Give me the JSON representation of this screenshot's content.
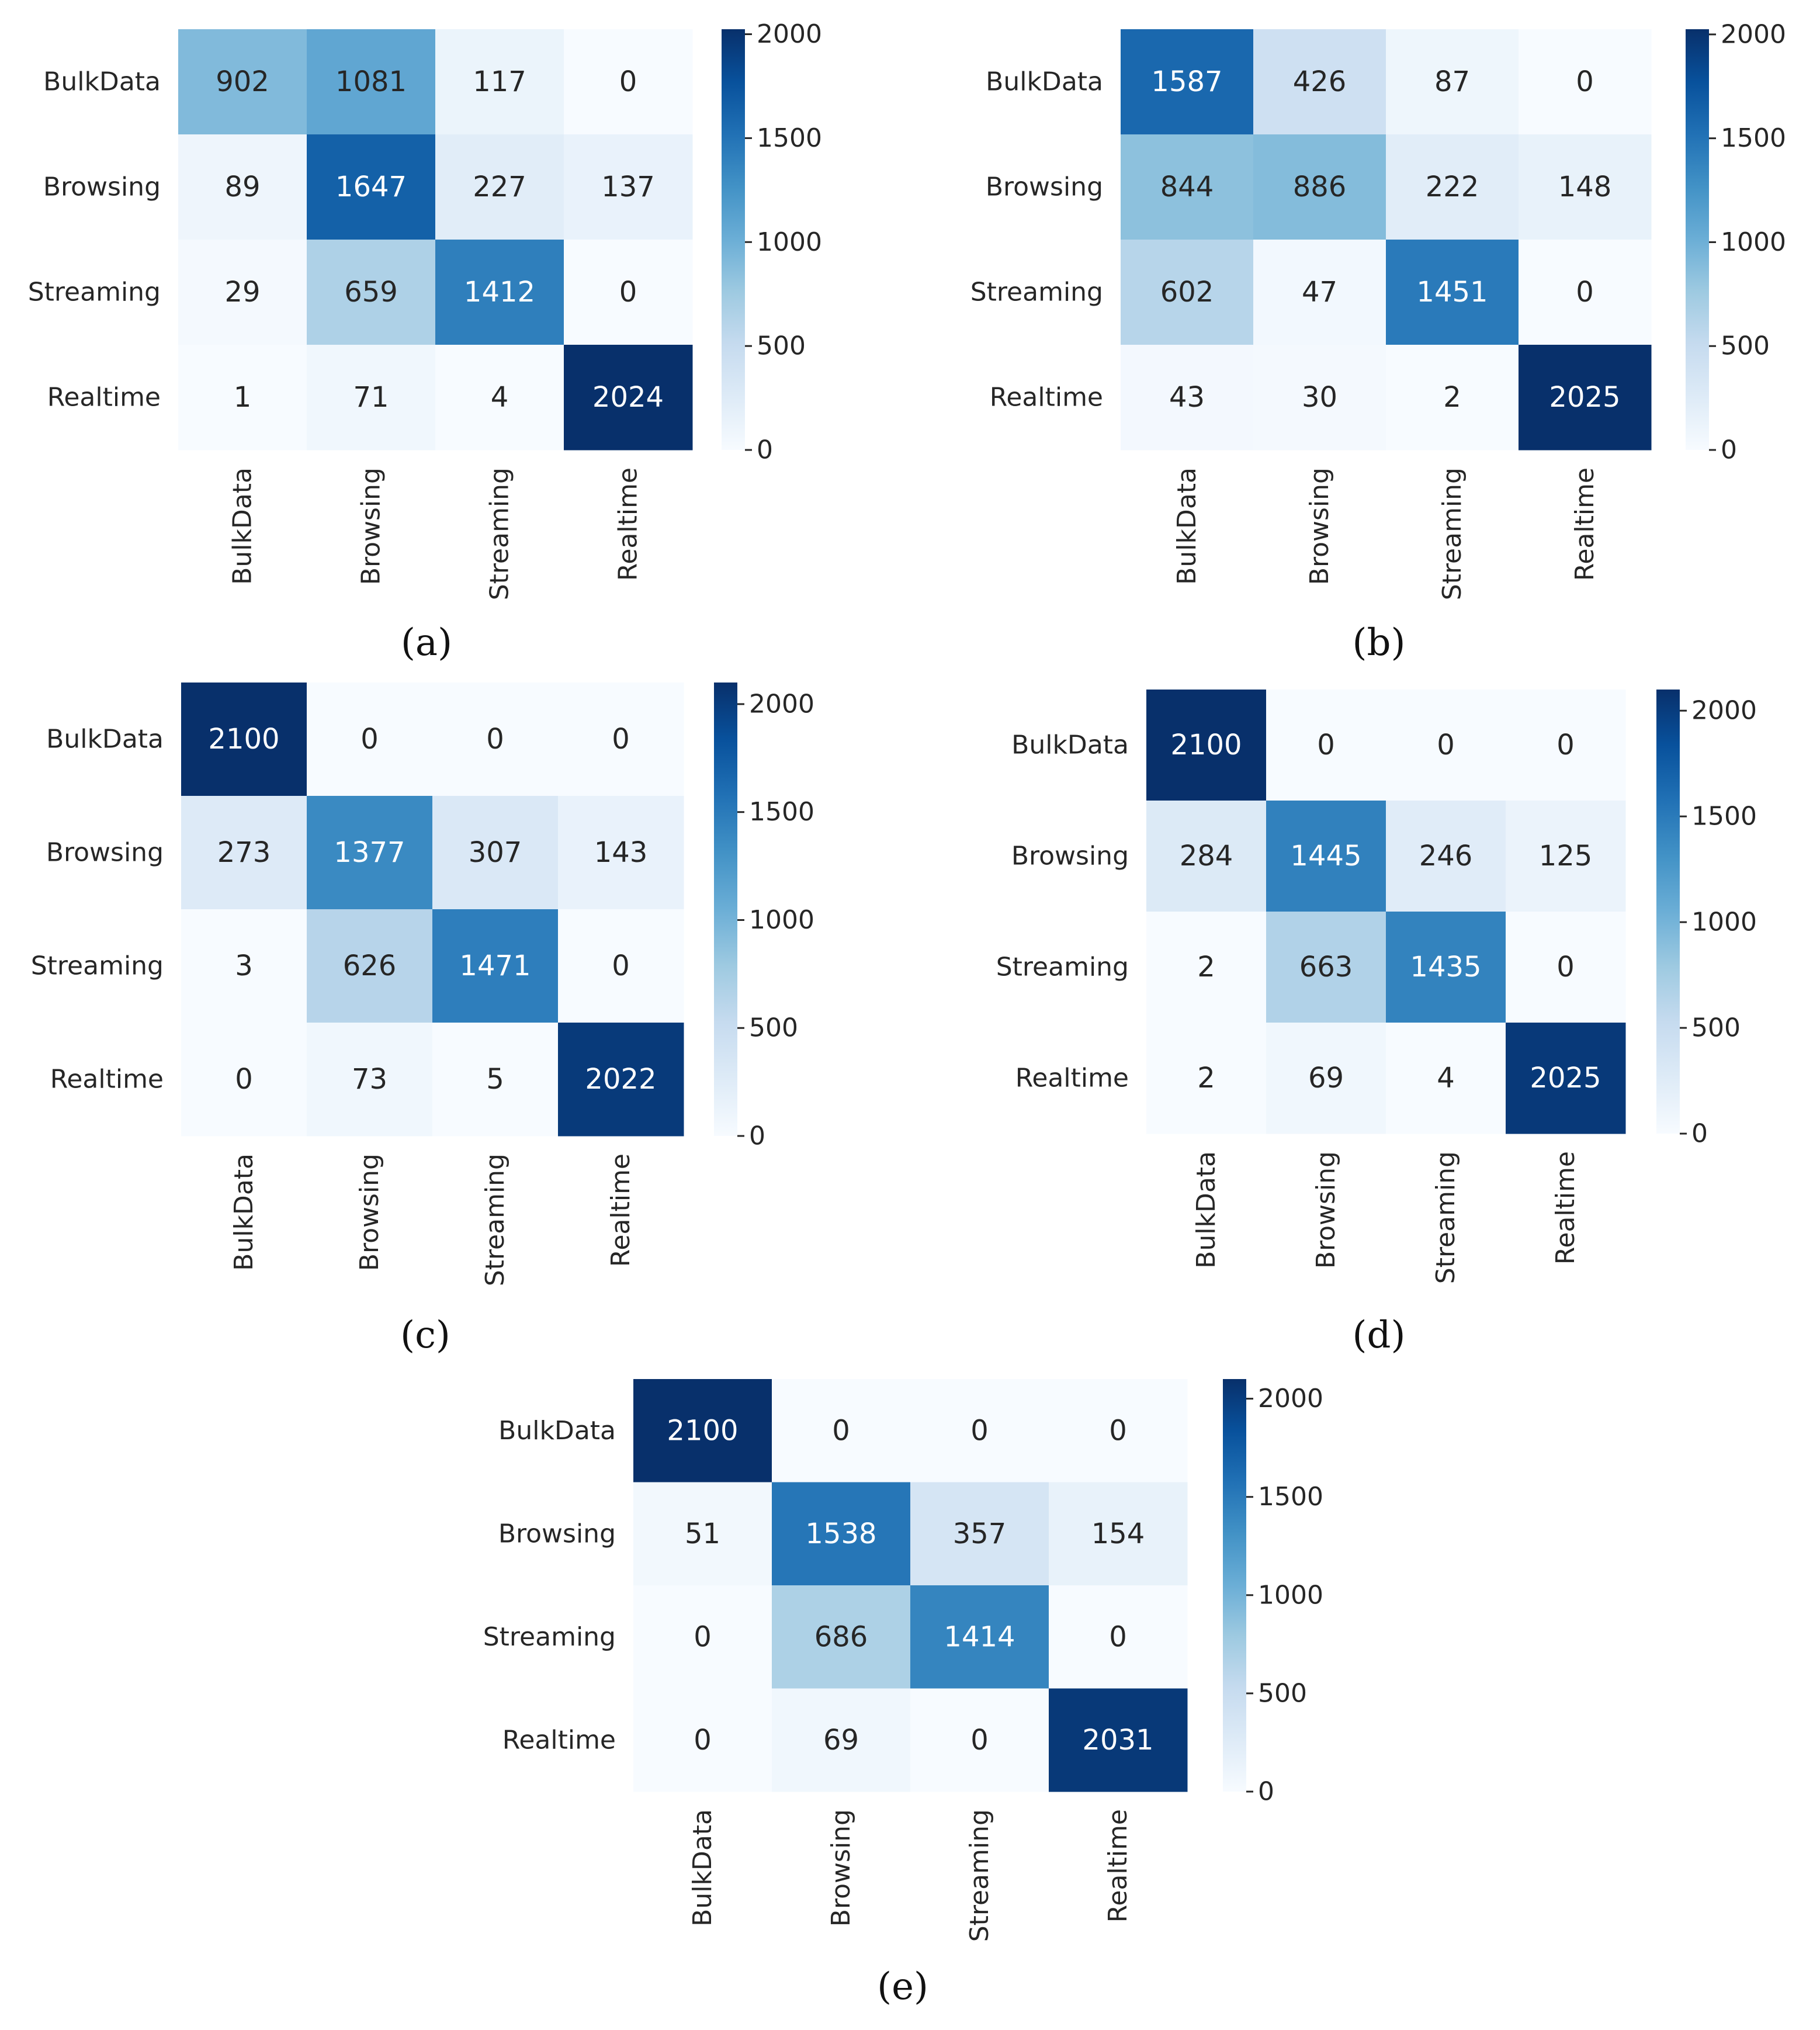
{
  "colors": {
    "scale_low": "#f7fbff",
    "scale_mid": "#6baed6",
    "scale_high": "#08306b",
    "text_dark": "#262626",
    "text_light": "#ffffff"
  },
  "chart_data": [
    {
      "type": "heatmap",
      "panel_label": "(a)",
      "row_labels": [
        "BulkData",
        "Browsing",
        "Streaming",
        "Realtime"
      ],
      "col_labels": [
        "BulkData",
        "Browsing",
        "Streaming",
        "Realtime"
      ],
      "values": [
        [
          902,
          1081,
          117,
          0
        ],
        [
          89,
          1647,
          227,
          137
        ],
        [
          29,
          659,
          1412,
          0
        ],
        [
          1,
          71,
          4,
          2024
        ]
      ],
      "colorbar": {
        "min": 0,
        "max": 2024,
        "ticks": [
          0,
          500,
          1000,
          1500,
          2000
        ]
      }
    },
    {
      "type": "heatmap",
      "panel_label": "(b)",
      "row_labels": [
        "BulkData",
        "Browsing",
        "Streaming",
        "Realtime"
      ],
      "col_labels": [
        "BulkData",
        "Browsing",
        "Streaming",
        "Realtime"
      ],
      "values": [
        [
          1587,
          426,
          87,
          0
        ],
        [
          844,
          886,
          222,
          148
        ],
        [
          602,
          47,
          1451,
          0
        ],
        [
          43,
          30,
          2,
          2025
        ]
      ],
      "colorbar": {
        "min": 0,
        "max": 2025,
        "ticks": [
          0,
          500,
          1000,
          1500,
          2000
        ]
      }
    },
    {
      "type": "heatmap",
      "panel_label": "(c)",
      "row_labels": [
        "BulkData",
        "Browsing",
        "Streaming",
        "Realtime"
      ],
      "col_labels": [
        "BulkData",
        "Browsing",
        "Streaming",
        "Realtime"
      ],
      "values": [
        [
          2100,
          0,
          0,
          0
        ],
        [
          273,
          1377,
          307,
          143
        ],
        [
          3,
          626,
          1471,
          0
        ],
        [
          0,
          73,
          5,
          2022
        ]
      ],
      "colorbar": {
        "min": 0,
        "max": 2100,
        "ticks": [
          0,
          500,
          1000,
          1500,
          2000
        ]
      }
    },
    {
      "type": "heatmap",
      "panel_label": "(d)",
      "row_labels": [
        "BulkData",
        "Browsing",
        "Streaming",
        "Realtime"
      ],
      "col_labels": [
        "BulkData",
        "Browsing",
        "Streaming",
        "Realtime"
      ],
      "values": [
        [
          2100,
          0,
          0,
          0
        ],
        [
          284,
          1445,
          246,
          125
        ],
        [
          2,
          663,
          1435,
          0
        ],
        [
          2,
          69,
          4,
          2025
        ]
      ],
      "colorbar": {
        "min": 0,
        "max": 2100,
        "ticks": [
          0,
          500,
          1000,
          1500,
          2000
        ]
      }
    },
    {
      "type": "heatmap",
      "panel_label": "(e)",
      "row_labels": [
        "BulkData",
        "Browsing",
        "Streaming",
        "Realtime"
      ],
      "col_labels": [
        "BulkData",
        "Browsing",
        "Streaming",
        "Realtime"
      ],
      "values": [
        [
          2100,
          0,
          0,
          0
        ],
        [
          51,
          1538,
          357,
          154
        ],
        [
          0,
          686,
          1414,
          0
        ],
        [
          0,
          69,
          0,
          2031
        ]
      ],
      "colorbar": {
        "min": 0,
        "max": 2100,
        "ticks": [
          0,
          500,
          1000,
          1500,
          2000
        ]
      }
    }
  ]
}
